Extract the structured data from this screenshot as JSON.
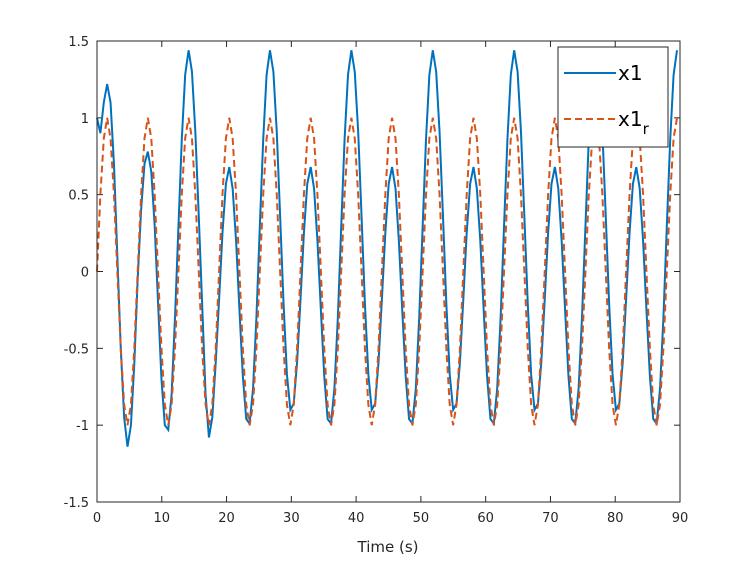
{
  "chart_data": {
    "type": "line",
    "xlabel": "Time (s)",
    "x": [
      0,
      0.52,
      1.05,
      1.57,
      2.09,
      2.62,
      3.14,
      3.67,
      4.19,
      4.71,
      5.24,
      5.76,
      6.28,
      6.81,
      7.33,
      7.85,
      8.38,
      8.9,
      9.42,
      9.95,
      10.47,
      11,
      11.52,
      12.04,
      12.57,
      13.09,
      13.61,
      14.14,
      14.66,
      15.18,
      15.71,
      16.23,
      16.76,
      17.28,
      17.8,
      18.33,
      18.85,
      19.37,
      19.9,
      20.42,
      20.94,
      21.47,
      21.99,
      22.51,
      23.04,
      23.56,
      24.09,
      24.61,
      25.13,
      25.66,
      26.18,
      26.7,
      27.23,
      27.75,
      28.27,
      28.8,
      29.32,
      29.85,
      30.37,
      30.89,
      31.42,
      31.94,
      32.46,
      32.99,
      33.51,
      34.03,
      34.56,
      35.08,
      35.6,
      36.13,
      36.65,
      37.18,
      37.7,
      38.22,
      38.75,
      39.27,
      39.79,
      40.32,
      40.84,
      41.36,
      41.89,
      42.41,
      42.94,
      43.46,
      43.98,
      44.51,
      45.03,
      45.55,
      46.08,
      46.6,
      47.12,
      47.65,
      48.17,
      48.69,
      49.22,
      49.74,
      50.27,
      50.79,
      51.31,
      51.84,
      52.36,
      52.88,
      53.41,
      53.93,
      54.45,
      54.98,
      55.5,
      56.03,
      56.55,
      57.07,
      57.6,
      58.12,
      58.64,
      59.17,
      59.69,
      60.21,
      60.74,
      61.26,
      61.78,
      62.31,
      62.83,
      63.36,
      63.88,
      64.4,
      64.93,
      65.45,
      65.97,
      66.5,
      67.02,
      67.54,
      68.07,
      68.59,
      69.12,
      69.64,
      70.16,
      70.69,
      71.21,
      71.73,
      72.26,
      72.78,
      73.3,
      73.83,
      74.35,
      74.87,
      75.4,
      75.92,
      76.45,
      76.97,
      77.49,
      78.02,
      78.54,
      79.06,
      79.59,
      80.11,
      80.63,
      81.16,
      81.68,
      82.21,
      82.73,
      83.25,
      83.78,
      84.3,
      84.82,
      85.35,
      85.87,
      86.39,
      86.92,
      87.44,
      87.96,
      88.49,
      89.01,
      89.54
    ],
    "series": [
      {
        "name": "x1",
        "color": "#0072bd",
        "dash": false,
        "values": [
          1.0,
          0.9,
          1.1,
          1.22,
          1.1,
          0.7,
          0.1,
          -0.5,
          -0.95,
          -1.14,
          -1.0,
          -0.6,
          -0.05,
          0.4,
          0.7,
          0.78,
          0.65,
          0.3,
          -0.2,
          -0.7,
          -1.0,
          -1.03,
          -0.8,
          -0.3,
          0.29,
          0.86,
          1.28,
          1.44,
          1.3,
          0.91,
          0.36,
          -0.21,
          -0.8,
          -1.08,
          -0.95,
          -0.59,
          -0.18,
          0.25,
          0.57,
          0.68,
          0.54,
          0.2,
          -0.25,
          -0.68,
          -0.96,
          -0.99,
          -0.76,
          -0.3,
          0.29,
          0.86,
          1.28,
          1.44,
          1.3,
          0.91,
          0.36,
          -0.21,
          -0.67,
          -0.9,
          -0.86,
          -0.59,
          -0.18,
          0.25,
          0.57,
          0.68,
          0.54,
          0.2,
          -0.25,
          -0.68,
          -0.96,
          -0.99,
          -0.76,
          -0.3,
          0.29,
          0.86,
          1.28,
          1.44,
          1.3,
          0.91,
          0.36,
          -0.21,
          -0.67,
          -0.9,
          -0.86,
          -0.59,
          -0.18,
          0.25,
          0.57,
          0.68,
          0.54,
          0.2,
          -0.25,
          -0.68,
          -0.96,
          -0.99,
          -0.76,
          -0.3,
          0.29,
          0.86,
          1.28,
          1.44,
          1.3,
          0.91,
          0.36,
          -0.21,
          -0.67,
          -0.9,
          -0.86,
          -0.59,
          -0.18,
          0.25,
          0.57,
          0.68,
          0.54,
          0.2,
          -0.25,
          -0.68,
          -0.96,
          -0.99,
          -0.76,
          -0.3,
          0.29,
          0.86,
          1.28,
          1.44,
          1.3,
          0.91,
          0.36,
          -0.21,
          -0.67,
          -0.9,
          -0.86,
          -0.59,
          -0.18,
          0.25,
          0.57,
          0.68,
          0.54,
          0.2,
          -0.25,
          -0.68,
          -0.96,
          -0.99,
          -0.76,
          -0.3,
          0.29,
          0.86,
          1.28,
          1.44,
          1.3,
          0.91,
          0.36,
          -0.21,
          -0.67,
          -0.9,
          -0.86,
          -0.59,
          -0.18,
          0.25,
          0.57,
          0.68,
          0.54,
          0.2,
          -0.25,
          -0.68,
          -0.96,
          -0.99,
          -0.76,
          -0.3,
          0.29,
          0.86,
          1.28,
          1.44
        ]
      },
      {
        "name": "x1_r",
        "color": "#d95319",
        "dash": true,
        "values": [
          0,
          0.5,
          0.866,
          1,
          0.866,
          0.5,
          0,
          -0.5,
          -0.866,
          -1,
          -0.866,
          -0.5,
          0,
          0.5,
          0.866,
          1,
          0.866,
          0.5,
          0,
          -0.5,
          -0.866,
          -1,
          -0.866,
          -0.5,
          0,
          0.5,
          0.866,
          1,
          0.866,
          0.5,
          0,
          -0.5,
          -0.866,
          -1,
          -0.866,
          -0.5,
          0,
          0.5,
          0.866,
          1,
          0.866,
          0.5,
          0,
          -0.5,
          -0.866,
          -1,
          -0.866,
          -0.5,
          0,
          0.5,
          0.866,
          1,
          0.866,
          0.5,
          0,
          -0.5,
          -0.866,
          -1,
          -0.866,
          -0.5,
          0,
          0.5,
          0.866,
          1,
          0.866,
          0.5,
          0,
          -0.5,
          -0.866,
          -1,
          -0.866,
          -0.5,
          0,
          0.5,
          0.866,
          1,
          0.866,
          0.5,
          0,
          -0.5,
          -0.866,
          -1,
          -0.866,
          -0.5,
          0,
          0.5,
          0.866,
          1,
          0.866,
          0.5,
          0,
          -0.5,
          -0.866,
          -1,
          -0.866,
          -0.5,
          0,
          0.5,
          0.866,
          1,
          0.866,
          0.5,
          0,
          -0.5,
          -0.866,
          -1,
          -0.866,
          -0.5,
          0,
          0.5,
          0.866,
          1,
          0.866,
          0.5,
          0,
          -0.5,
          -0.866,
          -1,
          -0.866,
          -0.5,
          0,
          0.5,
          0.866,
          1,
          0.866,
          0.5,
          0,
          -0.5,
          -0.866,
          -1,
          -0.866,
          -0.5,
          0,
          0.5,
          0.866,
          1,
          0.866,
          0.5,
          0,
          -0.5,
          -0.866,
          -1,
          -0.866,
          -0.5,
          0,
          0.5,
          0.866,
          1,
          0.866,
          0.5,
          0,
          -0.5,
          -0.866,
          -1,
          -0.866,
          -0.5,
          0,
          0.5,
          0.866,
          1,
          0.866,
          0.5,
          0,
          -0.5,
          -0.866,
          -1,
          -0.866,
          -0.5,
          0,
          0.5,
          0.866,
          1
        ]
      }
    ],
    "xlim": [
      0,
      90
    ],
    "xticks": [
      0,
      10,
      20,
      30,
      40,
      50,
      60,
      70,
      80,
      90
    ],
    "ylim": [
      -1.5,
      1.5
    ],
    "yticks": [
      -1.5,
      -1,
      -0.5,
      0,
      0.5,
      1,
      1.5
    ],
    "grid": false,
    "legend": "upper right"
  }
}
